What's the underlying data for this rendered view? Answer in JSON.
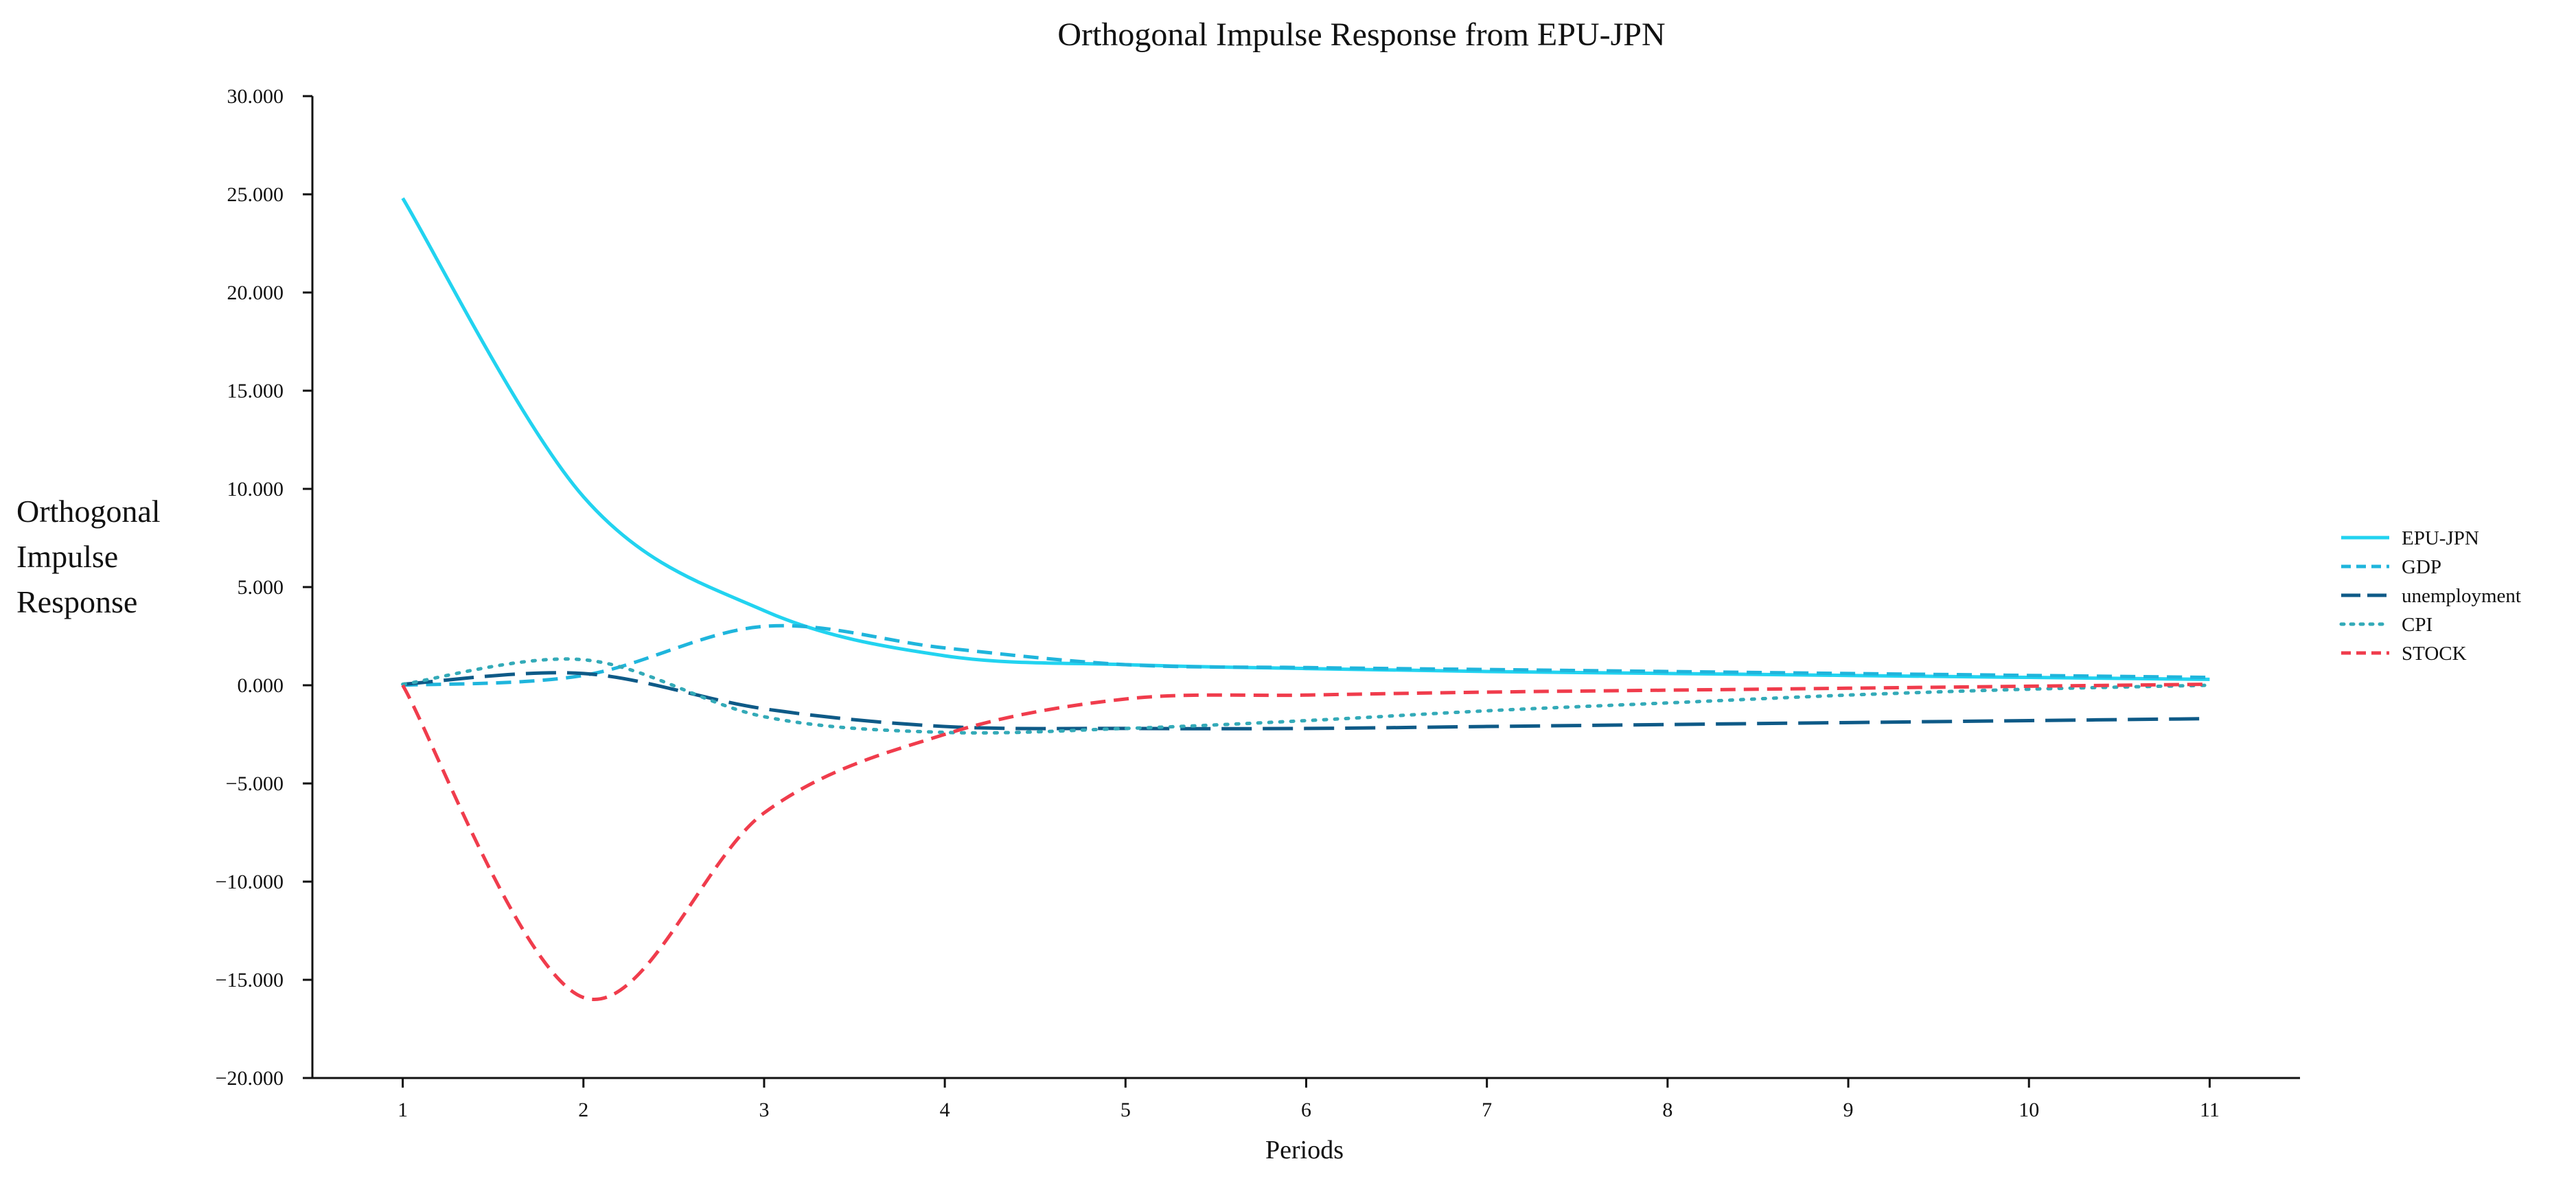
{
  "chart_data": {
    "type": "line",
    "title": "Orthogonal Impulse Response from EPU-JPN",
    "xlabel": "Periods",
    "ylabel": [
      "Orthogonal",
      "Impulse",
      "Response"
    ],
    "x": [
      1,
      2,
      3,
      4,
      5,
      6,
      7,
      8,
      9,
      10,
      11
    ],
    "x_tick_labels": [
      "1",
      "2",
      "3",
      "4",
      "5",
      "6",
      "7",
      "8",
      "9",
      "10",
      "11"
    ],
    "xlim": [
      0.5,
      11.5
    ],
    "ylim": [
      -20,
      30
    ],
    "y_ticks": [
      30,
      25,
      20,
      15,
      10,
      5,
      0,
      -5,
      -10,
      -15,
      -20
    ],
    "y_tick_labels": [
      "30.000",
      "25.000",
      "20.000",
      "15.000",
      "10.000",
      "5.000",
      "0.000",
      "−5.000",
      "−10.000",
      "−15.000",
      "−20.000"
    ],
    "grid": false,
    "legend_position": "right",
    "series": [
      {
        "name": "EPU-JPN",
        "color": "#22d3f0",
        "dash": "solid",
        "values": [
          24.8,
          9.6,
          3.8,
          1.5,
          1.05,
          0.85,
          0.7,
          0.6,
          0.5,
          0.4,
          0.3
        ]
      },
      {
        "name": "GDP",
        "color": "#1fb5dc",
        "dash": "dashed",
        "values": [
          0.0,
          0.5,
          3.0,
          1.9,
          1.05,
          0.9,
          0.8,
          0.7,
          0.6,
          0.5,
          0.4
        ]
      },
      {
        "name": "unemployment",
        "color": "#0e5a87",
        "dash": "longdash",
        "values": [
          0.05,
          0.6,
          -1.2,
          -2.1,
          -2.2,
          -2.2,
          -2.1,
          -2.0,
          -1.9,
          -1.8,
          -1.7
        ]
      },
      {
        "name": "CPI",
        "color": "#33aab8",
        "dash": "dotted",
        "values": [
          0.05,
          1.3,
          -1.6,
          -2.4,
          -2.2,
          -1.8,
          -1.3,
          -0.9,
          -0.5,
          -0.2,
          0.0
        ]
      },
      {
        "name": "STOCK",
        "color": "#f03c4c",
        "dash": "dashed",
        "values": [
          0.0,
          -15.9,
          -6.5,
          -2.5,
          -0.7,
          -0.5,
          -0.35,
          -0.25,
          -0.15,
          -0.05,
          0.05
        ]
      }
    ]
  }
}
